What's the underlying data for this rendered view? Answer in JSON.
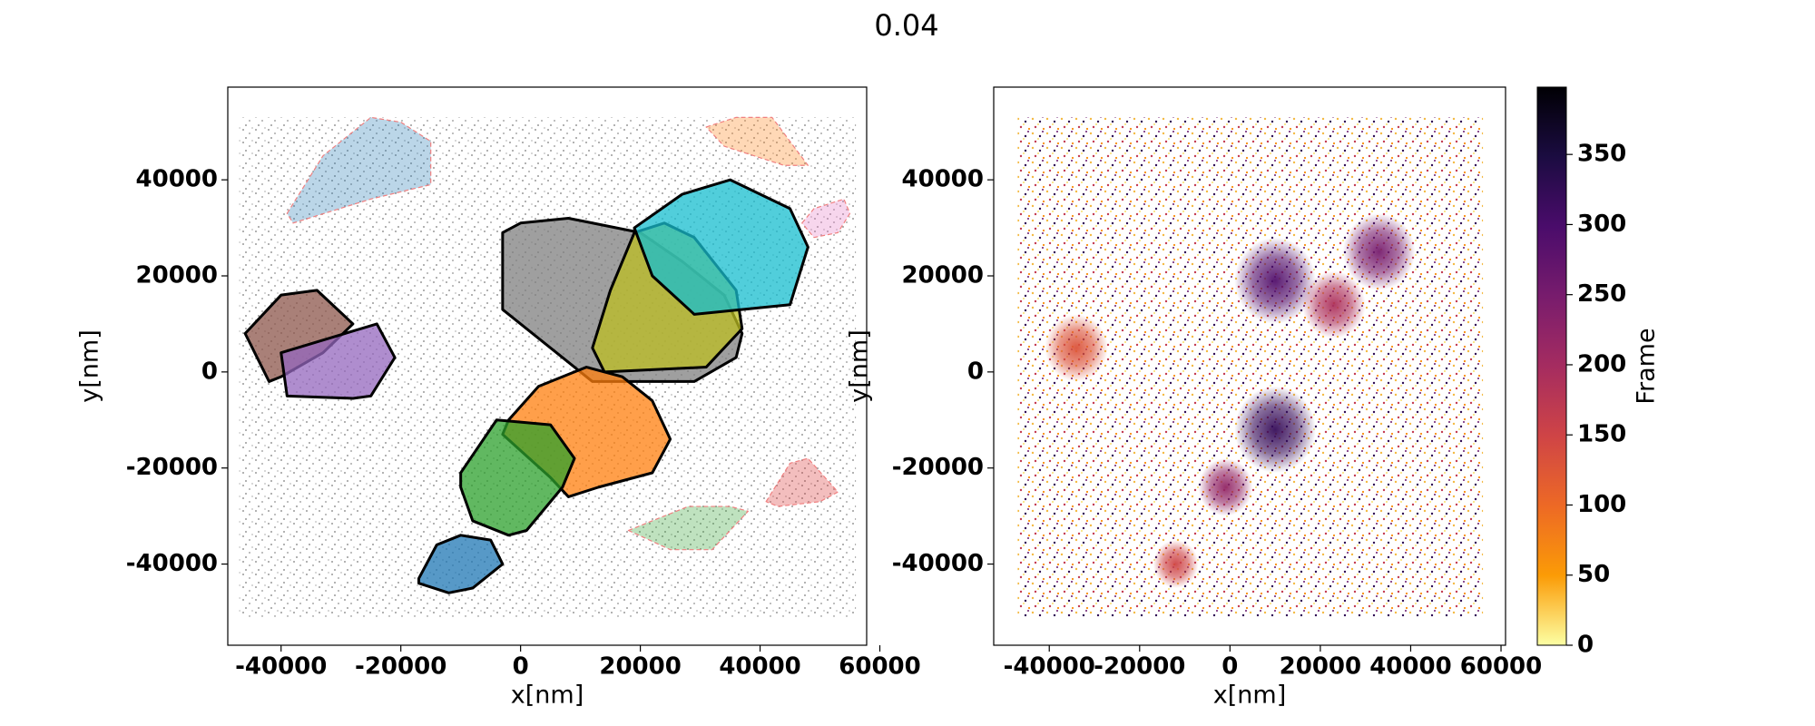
{
  "suptitle": "0.04",
  "chart_data": [
    {
      "type": "scatter",
      "xlabel": "x[nm]",
      "ylabel": "y[nm]",
      "xlim": [
        -48900,
        57800
      ],
      "ylim": [
        -56900,
        59300
      ],
      "xticks": [
        -40000,
        -20000,
        0,
        20000,
        40000,
        60000
      ],
      "yticks": [
        -40000,
        -20000,
        0,
        20000,
        40000
      ],
      "noise": {
        "color": "#808080",
        "x": [
          -47000,
          56000
        ],
        "y": [
          -51000,
          53000
        ]
      },
      "clusters": [
        {
          "color": "#8c564b",
          "hull": "solid",
          "x": [
            -46000,
            -40000,
            -34000,
            -28000,
            -33000,
            -40000,
            -42000
          ],
          "y": [
            8000,
            16000,
            17000,
            10000,
            4000,
            -1000,
            -2000
          ]
        },
        {
          "color": "#9467bd",
          "hull": "solid",
          "x": [
            -40000,
            -24000,
            -21000,
            -25000,
            -28000,
            -39000
          ],
          "y": [
            4000,
            10000,
            3000,
            -5000,
            -5500,
            -5000
          ]
        },
        {
          "color": "#7f7f7f",
          "hull": "solid",
          "x": [
            -3000,
            0,
            8000,
            20000,
            27000,
            34000,
            37000,
            36000,
            29000,
            12000,
            7000,
            -3000
          ],
          "y": [
            29000,
            31000,
            32000,
            29000,
            23000,
            16000,
            8000,
            3000,
            -2000,
            -2000,
            3000,
            13000
          ]
        },
        {
          "color": "#bcbd22",
          "hull": "solid",
          "x": [
            12000,
            15000,
            19000,
            24000,
            29000,
            36000,
            37000,
            31000,
            14000
          ],
          "y": [
            5000,
            17000,
            29000,
            31000,
            28000,
            17000,
            9000,
            1000,
            0
          ]
        },
        {
          "color": "#17becf",
          "hull": "solid",
          "x": [
            19000,
            27000,
            35000,
            45000,
            48000,
            45000,
            29000,
            22000
          ],
          "y": [
            30000,
            37000,
            40000,
            34000,
            26000,
            14000,
            12000,
            20000
          ]
        },
        {
          "color": "#ff7f0e",
          "hull": "solid",
          "x": [
            -2000,
            3000,
            11000,
            17000,
            22000,
            25000,
            22000,
            13000,
            8000,
            5000,
            -3000
          ],
          "y": [
            -10000,
            -3000,
            1000,
            -1000,
            -6000,
            -14000,
            -21000,
            -24000,
            -26000,
            -22000,
            -13000
          ]
        },
        {
          "color": "#2ca02c",
          "hull": "solid",
          "x": [
            -10000,
            -4000,
            5000,
            9000,
            7000,
            1000,
            -2000,
            -8000,
            -10000
          ],
          "y": [
            -21000,
            -10000,
            -11000,
            -18000,
            -24000,
            -33000,
            -34000,
            -31000,
            -24000
          ]
        },
        {
          "color": "#1f77b4",
          "hull": "solid",
          "x": [
            -17000,
            -14000,
            -10000,
            -5000,
            -3000,
            -8000,
            -12000,
            -17000
          ],
          "y": [
            -43000,
            -36000,
            -34000,
            -35000,
            -40000,
            -45000,
            -46000,
            -44000
          ]
        },
        {
          "color": "#1f77b4",
          "hull": "dashed",
          "x": [
            -39000,
            -33000,
            -25000,
            -20000,
            -15000,
            -15000,
            -25000,
            -38000
          ],
          "y": [
            33000,
            45000,
            53000,
            52000,
            48000,
            39000,
            36000,
            31000
          ]
        },
        {
          "color": "#ff7f0e",
          "hull": "dashed",
          "x": [
            31000,
            36000,
            42000,
            48000,
            44000,
            34000
          ],
          "y": [
            51000,
            53000,
            53000,
            43000,
            43000,
            47000
          ]
        },
        {
          "color": "#e377c2",
          "hull": "dashed",
          "x": [
            47000,
            49000,
            54000,
            55000,
            53000,
            49000
          ],
          "y": [
            31000,
            34000,
            36000,
            33000,
            29000,
            28000
          ]
        },
        {
          "color": "#d62728",
          "hull": "dashed",
          "x": [
            41000,
            45000,
            48000,
            53000,
            50000,
            43000
          ],
          "y": [
            -27000,
            -19000,
            -18000,
            -25000,
            -27000,
            -28000
          ]
        },
        {
          "color": "#2ca02c",
          "hull": "dashed",
          "x": [
            18000,
            28000,
            35000,
            38000,
            32000,
            25000
          ],
          "y": [
            -33000,
            -28000,
            -28000,
            -29000,
            -37000,
            -37000
          ]
        }
      ]
    },
    {
      "type": "density",
      "xlabel": "x[nm]",
      "ylabel": "y[nm]",
      "xlim": [
        -52300,
        61000
      ],
      "ylim": [
        -56900,
        59300
      ],
      "xticks": [
        -40000,
        -20000,
        0,
        20000,
        40000,
        60000
      ],
      "yticks": [
        -40000,
        -20000,
        0,
        20000,
        40000
      ],
      "noise": {
        "x": [
          -47000,
          56000
        ],
        "y": [
          -51000,
          53000
        ]
      },
      "blobs": {
        "x": [
          -34000,
          10000,
          23000,
          33000,
          10000,
          -1000,
          -12000
        ],
        "y": [
          5000,
          19000,
          14000,
          25000,
          -12000,
          -24000,
          -40000
        ],
        "r": [
          7000,
          9000,
          7000,
          8000,
          9000,
          6000,
          5000
        ],
        "frame": [
          130,
          290,
          190,
          250,
          320,
          220,
          150
        ]
      },
      "colorbar": {
        "label": "Frame",
        "colormap": "inferno_r",
        "clim": [
          0,
          398
        ],
        "ticks": [
          0,
          50,
          100,
          150,
          200,
          250,
          300,
          350
        ]
      }
    }
  ]
}
